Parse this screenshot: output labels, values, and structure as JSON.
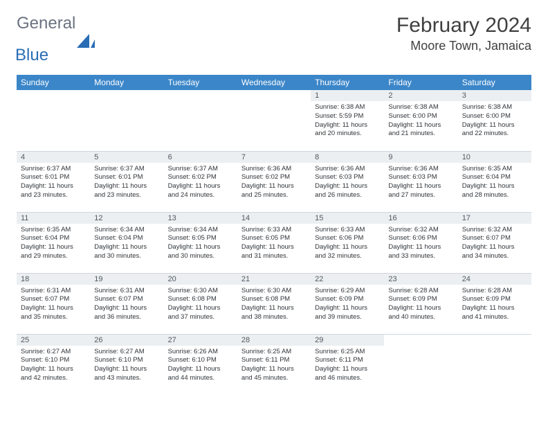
{
  "logo": {
    "text1": "General",
    "text2": "Blue",
    "text1_color": "#6b7280",
    "text2_color": "#2a6db5",
    "icon_color": "#2a6db5"
  },
  "title": "February 2024",
  "location": "Moore Town, Jamaica",
  "header_bg": "#3b86c9",
  "header_fg": "#ffffff",
  "daynum_bg": "#eceff1",
  "grid_border": "#d0d6de",
  "weekdays": [
    "Sunday",
    "Monday",
    "Tuesday",
    "Wednesday",
    "Thursday",
    "Friday",
    "Saturday"
  ],
  "first_weekday": 4,
  "days": [
    {
      "n": 1,
      "sr": "6:38 AM",
      "ss": "5:59 PM",
      "dl": "11 hours and 20 minutes."
    },
    {
      "n": 2,
      "sr": "6:38 AM",
      "ss": "6:00 PM",
      "dl": "11 hours and 21 minutes."
    },
    {
      "n": 3,
      "sr": "6:38 AM",
      "ss": "6:00 PM",
      "dl": "11 hours and 22 minutes."
    },
    {
      "n": 4,
      "sr": "6:37 AM",
      "ss": "6:01 PM",
      "dl": "11 hours and 23 minutes."
    },
    {
      "n": 5,
      "sr": "6:37 AM",
      "ss": "6:01 PM",
      "dl": "11 hours and 23 minutes."
    },
    {
      "n": 6,
      "sr": "6:37 AM",
      "ss": "6:02 PM",
      "dl": "11 hours and 24 minutes."
    },
    {
      "n": 7,
      "sr": "6:36 AM",
      "ss": "6:02 PM",
      "dl": "11 hours and 25 minutes."
    },
    {
      "n": 8,
      "sr": "6:36 AM",
      "ss": "6:03 PM",
      "dl": "11 hours and 26 minutes."
    },
    {
      "n": 9,
      "sr": "6:36 AM",
      "ss": "6:03 PM",
      "dl": "11 hours and 27 minutes."
    },
    {
      "n": 10,
      "sr": "6:35 AM",
      "ss": "6:04 PM",
      "dl": "11 hours and 28 minutes."
    },
    {
      "n": 11,
      "sr": "6:35 AM",
      "ss": "6:04 PM",
      "dl": "11 hours and 29 minutes."
    },
    {
      "n": 12,
      "sr": "6:34 AM",
      "ss": "6:04 PM",
      "dl": "11 hours and 30 minutes."
    },
    {
      "n": 13,
      "sr": "6:34 AM",
      "ss": "6:05 PM",
      "dl": "11 hours and 30 minutes."
    },
    {
      "n": 14,
      "sr": "6:33 AM",
      "ss": "6:05 PM",
      "dl": "11 hours and 31 minutes."
    },
    {
      "n": 15,
      "sr": "6:33 AM",
      "ss": "6:06 PM",
      "dl": "11 hours and 32 minutes."
    },
    {
      "n": 16,
      "sr": "6:32 AM",
      "ss": "6:06 PM",
      "dl": "11 hours and 33 minutes."
    },
    {
      "n": 17,
      "sr": "6:32 AM",
      "ss": "6:07 PM",
      "dl": "11 hours and 34 minutes."
    },
    {
      "n": 18,
      "sr": "6:31 AM",
      "ss": "6:07 PM",
      "dl": "11 hours and 35 minutes."
    },
    {
      "n": 19,
      "sr": "6:31 AM",
      "ss": "6:07 PM",
      "dl": "11 hours and 36 minutes."
    },
    {
      "n": 20,
      "sr": "6:30 AM",
      "ss": "6:08 PM",
      "dl": "11 hours and 37 minutes."
    },
    {
      "n": 21,
      "sr": "6:30 AM",
      "ss": "6:08 PM",
      "dl": "11 hours and 38 minutes."
    },
    {
      "n": 22,
      "sr": "6:29 AM",
      "ss": "6:09 PM",
      "dl": "11 hours and 39 minutes."
    },
    {
      "n": 23,
      "sr": "6:28 AM",
      "ss": "6:09 PM",
      "dl": "11 hours and 40 minutes."
    },
    {
      "n": 24,
      "sr": "6:28 AM",
      "ss": "6:09 PM",
      "dl": "11 hours and 41 minutes."
    },
    {
      "n": 25,
      "sr": "6:27 AM",
      "ss": "6:10 PM",
      "dl": "11 hours and 42 minutes."
    },
    {
      "n": 26,
      "sr": "6:27 AM",
      "ss": "6:10 PM",
      "dl": "11 hours and 43 minutes."
    },
    {
      "n": 27,
      "sr": "6:26 AM",
      "ss": "6:10 PM",
      "dl": "11 hours and 44 minutes."
    },
    {
      "n": 28,
      "sr": "6:25 AM",
      "ss": "6:11 PM",
      "dl": "11 hours and 45 minutes."
    },
    {
      "n": 29,
      "sr": "6:25 AM",
      "ss": "6:11 PM",
      "dl": "11 hours and 46 minutes."
    }
  ],
  "labels": {
    "sunrise": "Sunrise:",
    "sunset": "Sunset:",
    "daylight": "Daylight:"
  }
}
